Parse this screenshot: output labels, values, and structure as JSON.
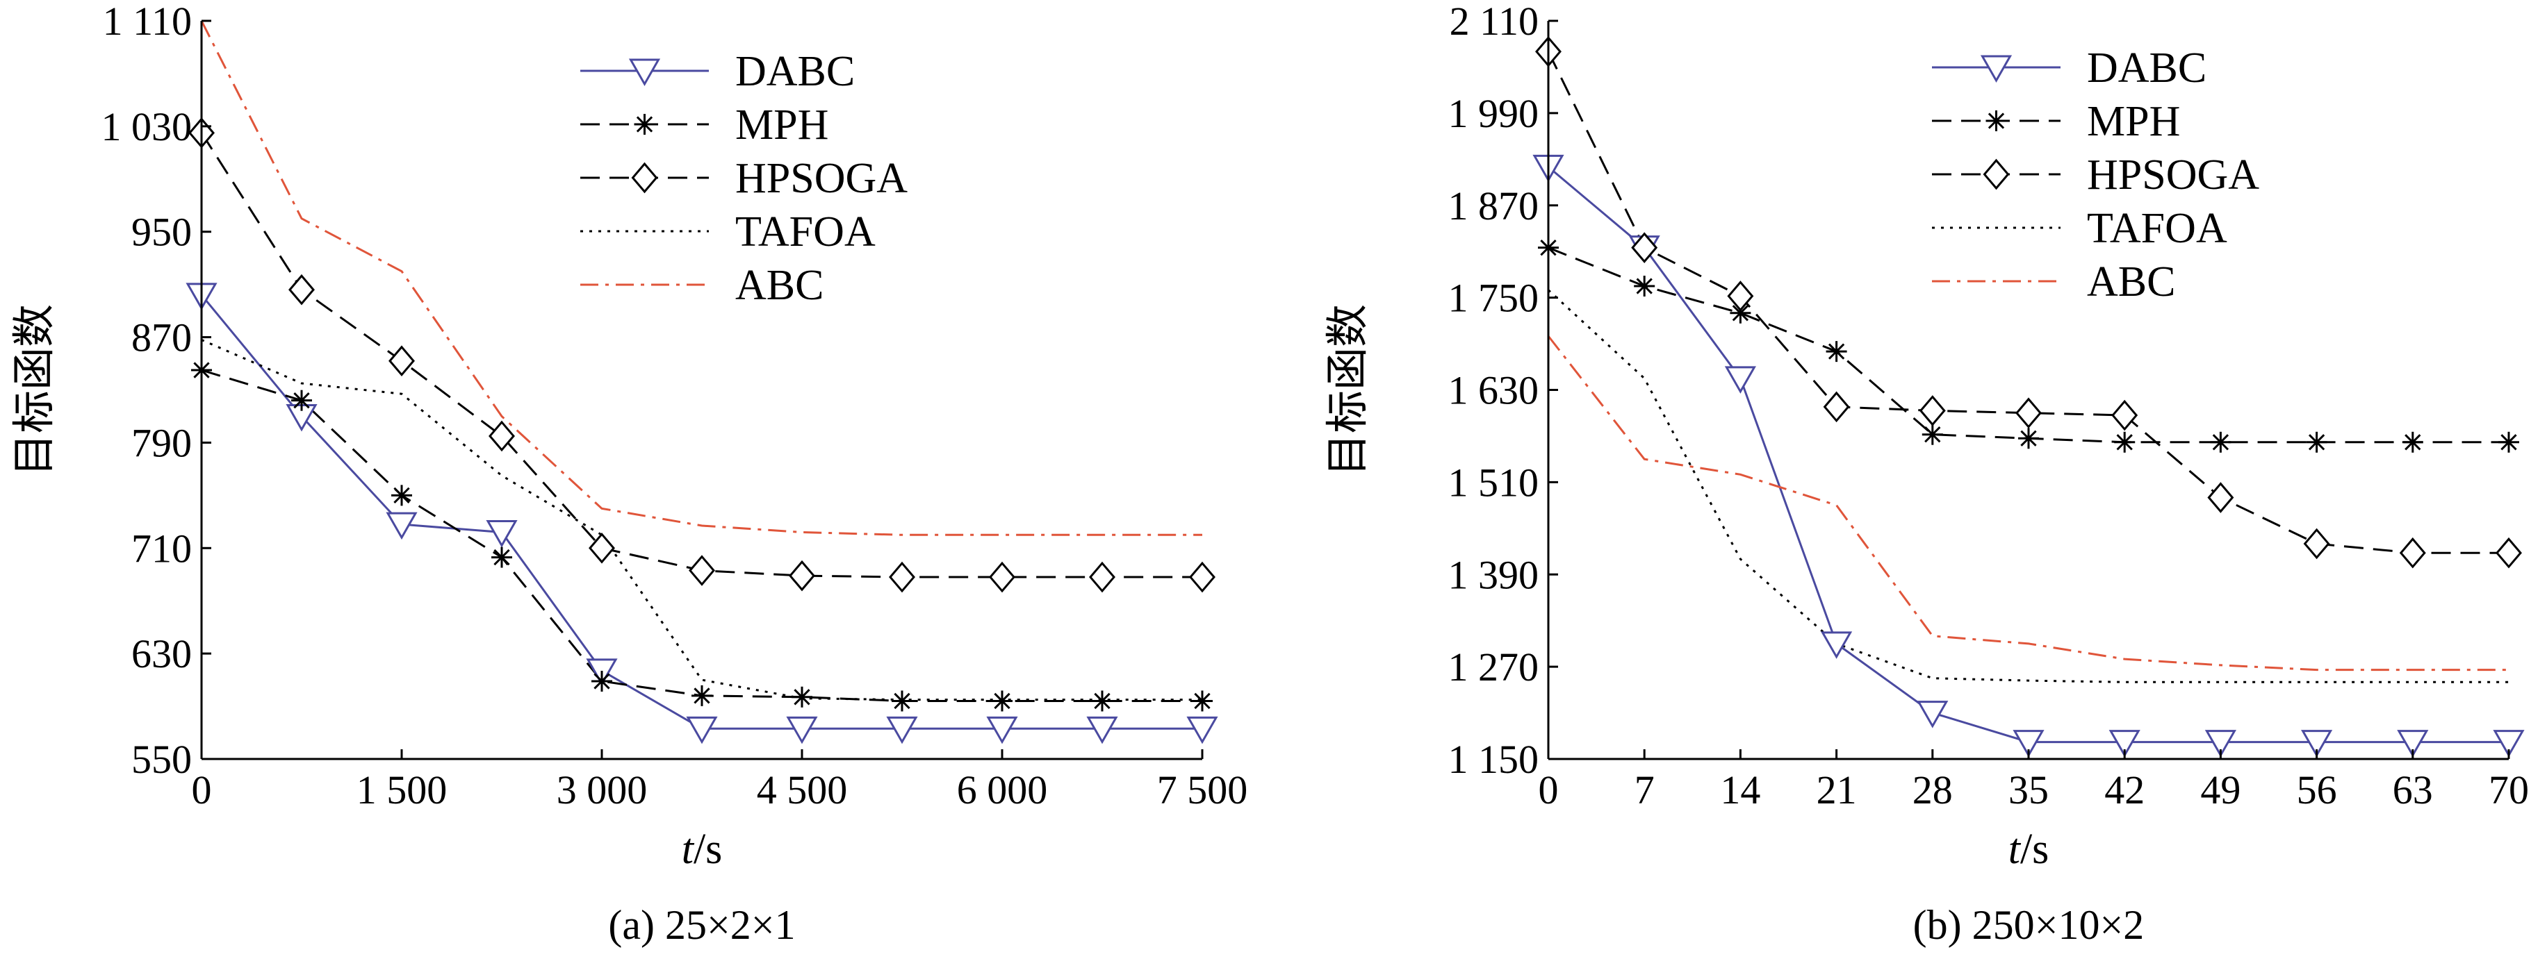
{
  "chart_data": [
    {
      "type": "line",
      "caption": "(a) 25×2×1",
      "xlabel": "t/s",
      "ylabel": "目标函数",
      "x": [
        0,
        750,
        1500,
        2250,
        3000,
        3750,
        4500,
        5250,
        6000,
        6750,
        7500
      ],
      "xticks": [
        0,
        1500,
        3000,
        4500,
        6000,
        7500
      ],
      "xtick_labels": [
        "0",
        "1 500",
        "3 000",
        "4 500",
        "6 000",
        "7 500"
      ],
      "xlim": [
        0,
        7500
      ],
      "yticks": [
        550,
        630,
        710,
        790,
        870,
        950,
        1030,
        1110
      ],
      "ytick_labels": [
        "550",
        "630",
        "710",
        "790",
        "870",
        "950",
        "1 030",
        "1 110"
      ],
      "ylim": [
        550,
        1110
      ],
      "legend_position": "top-right",
      "grid": false,
      "series": [
        {
          "name": "DABC",
          "style": "solid",
          "color": "#4a4aa0",
          "marker": "triangle-down",
          "values": [
            902,
            810,
            728,
            722,
            617,
            573,
            573,
            573,
            573,
            573,
            573
          ]
        },
        {
          "name": "MPH",
          "style": "dashed",
          "color": "#000000",
          "marker": "asterisk",
          "values": [
            845,
            822,
            750,
            703,
            609,
            598,
            597,
            594,
            594,
            594,
            594
          ]
        },
        {
          "name": "HPSOGA",
          "style": "dashed",
          "color": "#000000",
          "marker": "diamond",
          "values": [
            1025,
            906,
            852,
            795,
            710,
            693,
            689,
            688,
            688,
            688,
            688
          ]
        },
        {
          "name": "TAFOA",
          "style": "dotted",
          "color": "#000000",
          "marker": "none",
          "values": [
            868,
            835,
            827,
            765,
            720,
            610,
            596,
            595,
            595,
            595,
            595
          ]
        },
        {
          "name": "ABC",
          "style": "dashdot",
          "color": "#e0553a",
          "marker": "none",
          "values": [
            1110,
            960,
            920,
            810,
            740,
            727,
            722,
            720,
            720,
            720,
            720
          ]
        }
      ]
    },
    {
      "type": "line",
      "caption": "(b) 250×10×2",
      "xlabel": "t/s",
      "ylabel": "目标函数",
      "x": [
        0,
        7,
        14,
        21,
        28,
        35,
        42,
        49,
        56,
        63,
        70
      ],
      "xticks": [
        0,
        7,
        14,
        21,
        28,
        35,
        42,
        49,
        56,
        63,
        70
      ],
      "xtick_labels": [
        "0",
        "7",
        "14",
        "21",
        "28",
        "35",
        "42",
        "49",
        "56",
        "63",
        "70"
      ],
      "xlim": [
        0,
        70
      ],
      "yticks": [
        1150,
        1270,
        1390,
        1510,
        1630,
        1750,
        1870,
        1990,
        2110
      ],
      "ytick_labels": [
        "1 150",
        "1 270",
        "1 390",
        "1 510",
        "1 630",
        "1 750",
        "1 870",
        "1 990",
        "2 110"
      ],
      "ylim": [
        1150,
        2110
      ],
      "legend_position": "top-right",
      "grid": false,
      "series": [
        {
          "name": "DABC",
          "style": "solid",
          "color": "#4a4aa0",
          "marker": "triangle-down",
          "values": [
            1920,
            1815,
            1645,
            1300,
            1210,
            1172,
            1172,
            1172,
            1172,
            1172,
            1172
          ]
        },
        {
          "name": "MPH",
          "style": "dashed",
          "color": "#000000",
          "marker": "asterisk",
          "values": [
            1815,
            1765,
            1730,
            1680,
            1572,
            1567,
            1562,
            1562,
            1562,
            1562,
            1562
          ]
        },
        {
          "name": "HPSOGA",
          "style": "dashed",
          "color": "#000000",
          "marker": "diamond",
          "values": [
            2070,
            1815,
            1752,
            1608,
            1603,
            1600,
            1597,
            1490,
            1430,
            1418,
            1418
          ]
        },
        {
          "name": "TAFOA",
          "style": "dotted",
          "color": "#000000",
          "marker": "none",
          "values": [
            1760,
            1645,
            1410,
            1300,
            1255,
            1252,
            1250,
            1250,
            1250,
            1250,
            1250
          ]
        },
        {
          "name": "ABC",
          "style": "dashdot",
          "color": "#e0553a",
          "marker": "none",
          "values": [
            1700,
            1540,
            1520,
            1480,
            1310,
            1300,
            1280,
            1272,
            1266,
            1266,
            1266
          ]
        }
      ]
    }
  ]
}
